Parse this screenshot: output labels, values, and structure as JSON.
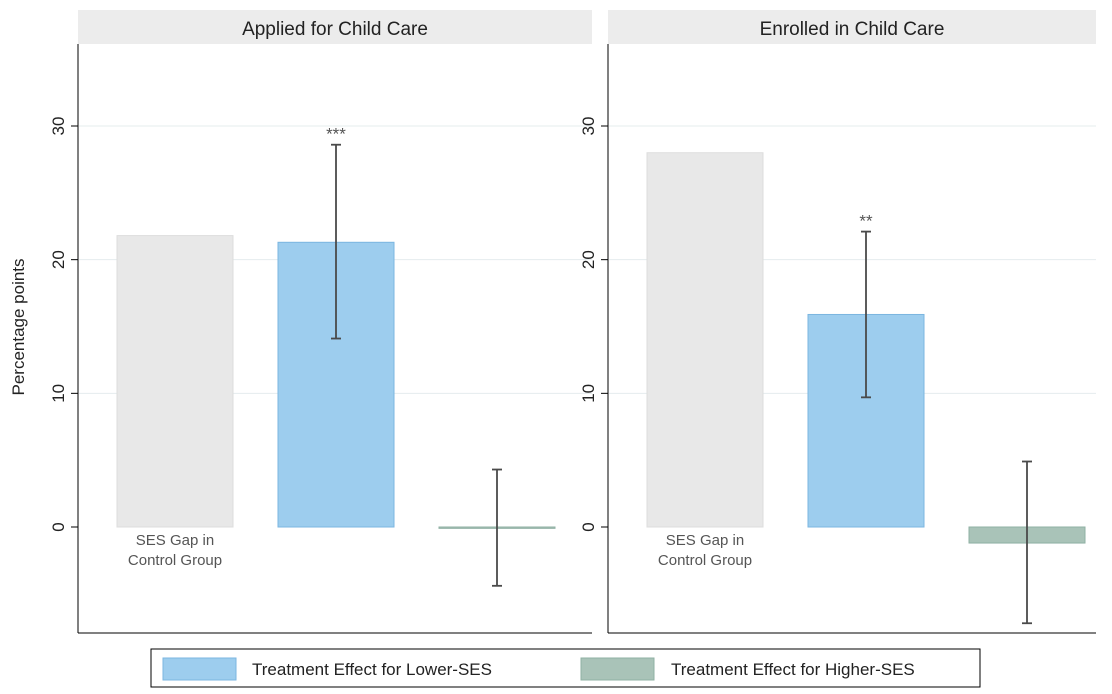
{
  "chart_data": {
    "type": "bar",
    "ylabel": "Percentage points",
    "ylim": [
      -7.6,
      36.4
    ],
    "yticks": [
      0,
      10,
      20,
      30
    ],
    "grid": true,
    "legend_position": "bottom",
    "colors": {
      "ses_gap": "#e8e8e8",
      "lower_ses": "#9dcdee",
      "higher_ses": "#a9c3b8",
      "error_bar": "#4a4a4a"
    },
    "category_label": "SES Gap in\nControl Group",
    "panels": [
      {
        "title": "Applied for Child Care",
        "bars": [
          {
            "key": "ses_gap",
            "value": 21.8,
            "label": "SES Gap in\nControl Group"
          },
          {
            "key": "lower_ses",
            "value": 21.3,
            "ci": [
              14.1,
              28.6
            ],
            "stars": "***"
          },
          {
            "key": "higher_ses",
            "value": -0.1,
            "ci": [
              -4.4,
              4.3
            ],
            "stars": ""
          }
        ]
      },
      {
        "title": "Enrolled in Child Care",
        "bars": [
          {
            "key": "ses_gap",
            "value": 28.0,
            "label": "SES Gap in\nControl Group"
          },
          {
            "key": "lower_ses",
            "value": 15.9,
            "ci": [
              9.7,
              22.1
            ],
            "stars": "**"
          },
          {
            "key": "higher_ses",
            "value": -1.2,
            "ci": [
              -7.2,
              4.9
            ],
            "stars": ""
          }
        ]
      }
    ],
    "legend": [
      {
        "key": "lower_ses",
        "label": "Treatment Effect for Lower-SES"
      },
      {
        "key": "higher_ses",
        "label": "Treatment Effect for Higher-SES"
      }
    ]
  }
}
